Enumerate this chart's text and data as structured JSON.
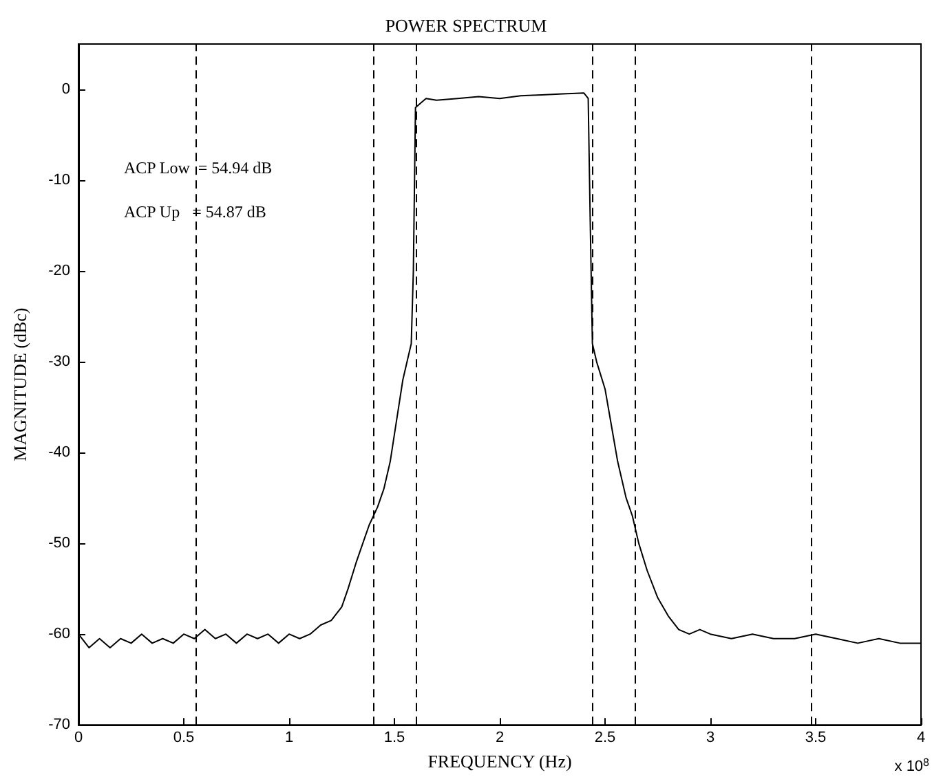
{
  "chart_data": {
    "type": "line",
    "title": "POWER SPECTRUM",
    "xlabel": "FREQUENCY (Hz)",
    "ylabel": "MAGNITUDE (dBc)",
    "annotations": [
      "ACP Low  = 54.94 dB",
      "ACP Up   = 54.87 dB",
      "x 10$^{8}$"
    ],
    "xlim": [
      0,
      4
    ],
    "xticks": [
      0,
      0.5,
      1,
      1.5,
      2,
      2.5,
      3,
      3.5,
      4
    ],
    "ylim": [
      -70,
      5
    ],
    "yticks": [
      -70,
      -60,
      -50,
      -40,
      -30,
      -20,
      -10,
      0
    ],
    "grid": false,
    "marker": "none",
    "line_style": "solid",
    "series": [
      {
        "color": "#000000",
        "x": [
          0,
          0.05,
          0.1,
          0.15,
          0.2,
          0.25,
          0.3,
          0.35,
          0.4,
          0.45,
          0.5,
          0.55,
          0.6,
          0.65,
          0.7,
          0.75,
          0.8,
          0.85,
          0.9,
          0.95,
          1.0,
          1.05,
          1.1,
          1.15,
          1.2,
          1.25,
          1.28,
          1.32,
          1.35,
          1.38,
          1.42,
          1.45,
          1.48,
          1.5,
          1.52,
          1.54,
          1.56,
          1.58,
          1.59,
          1.6,
          1.65,
          1.7,
          1.8,
          1.9,
          2.0,
          2.1,
          2.2,
          2.3,
          2.4,
          2.42,
          2.43,
          2.44,
          2.46,
          2.5,
          2.53,
          2.56,
          2.6,
          2.63,
          2.66,
          2.7,
          2.75,
          2.8,
          2.85,
          2.9,
          2.95,
          3.0,
          3.1,
          3.2,
          3.3,
          3.4,
          3.5,
          3.6,
          3.7,
          3.8,
          3.9,
          4.0
        ],
        "values": [
          -60,
          -61.5,
          -60.5,
          -61.5,
          -60.5,
          -61,
          -60,
          -61,
          -60.5,
          -61,
          -60,
          -60.5,
          -59.5,
          -60.5,
          -60,
          -61,
          -60,
          -60.5,
          -60,
          -61,
          -60,
          -60.5,
          -60,
          -59,
          -58.5,
          -57,
          -55,
          -52,
          -50,
          -48,
          -46,
          -44,
          -41,
          -38,
          -35,
          -32,
          -30,
          -28,
          -20,
          -2,
          -1,
          -1.2,
          -1,
          -0.8,
          -1,
          -0.7,
          -0.6,
          -0.5,
          -0.4,
          -1,
          -15,
          -28,
          -30,
          -33,
          -37,
          -41,
          -45,
          -47,
          -50,
          -53,
          -56,
          -58,
          -59.5,
          -60,
          -59.5,
          -60,
          -60.5,
          -60,
          -60.5,
          -60.5,
          -60,
          -60.5,
          -61,
          -60.5,
          -61,
          -61
        ]
      }
    ],
    "ref_lines": [
      {
        "axis": "x",
        "value": 0.56,
        "line_style": "dashed",
        "color": "#000000"
      },
      {
        "axis": "x",
        "value": 1.4,
        "line_style": "dashed",
        "color": "#000000"
      },
      {
        "axis": "x",
        "value": 1.6,
        "line_style": "dashed",
        "color": "#000000"
      },
      {
        "axis": "x",
        "value": 2.44,
        "line_style": "dashed",
        "color": "#000000"
      },
      {
        "axis": "x",
        "value": 2.64,
        "line_style": "dashed",
        "color": "#000000"
      },
      {
        "axis": "x",
        "value": 3.48,
        "line_style": "dashed",
        "color": "#000000"
      }
    ]
  }
}
